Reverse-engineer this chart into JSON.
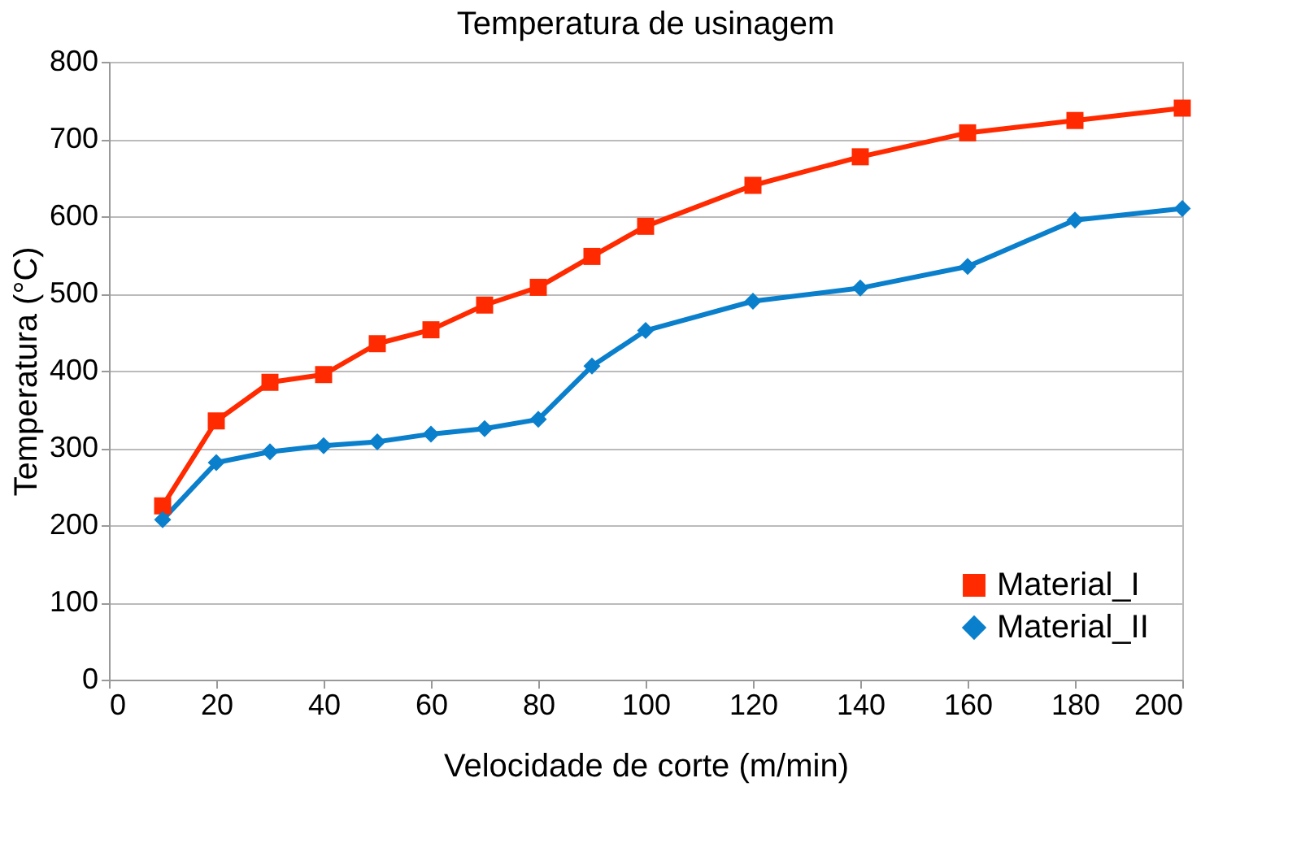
{
  "chart_data": {
    "type": "line",
    "title": "Temperatura de usinagem",
    "xlabel": "Velocidade de corte (m/min)",
    "ylabel": "Temperatura (°C)",
    "x": [
      10,
      20,
      30,
      40,
      50,
      60,
      70,
      80,
      90,
      100,
      120,
      140,
      160,
      180,
      200
    ],
    "series": [
      {
        "name": "Material_I",
        "color": "#ff2a00",
        "marker": "square",
        "values": [
          225,
          335,
          385,
          395,
          435,
          453,
          485,
          508,
          548,
          587,
          640,
          677,
          708,
          724,
          740
        ]
      },
      {
        "name": "Material_II",
        "color": "#0a7fcc",
        "marker": "diamond",
        "values": [
          207,
          281,
          295,
          303,
          308,
          318,
          325,
          337,
          406,
          452,
          490,
          507,
          535,
          595,
          610
        ]
      }
    ],
    "xlim": [
      0,
      200
    ],
    "xticks": [
      0,
      20,
      40,
      60,
      80,
      100,
      120,
      140,
      160,
      180,
      200
    ],
    "ylim": [
      0,
      800
    ],
    "yticks": [
      0,
      100,
      200,
      300,
      400,
      500,
      600,
      700,
      800
    ],
    "grid": "y",
    "legend": "bottom right",
    "line_style": "solid"
  }
}
